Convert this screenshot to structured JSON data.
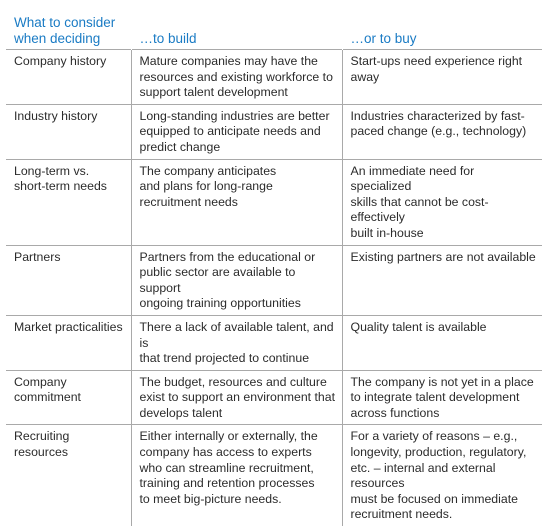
{
  "header": {
    "consider": "What to consider\nwhen deciding",
    "build": "…to build",
    "buy": "…or to buy"
  },
  "rows": [
    {
      "factor": "Company history",
      "build": "Mature companies may have the\nresources and existing workforce to\nsupport talent development",
      "buy": "Start-ups need experience right away"
    },
    {
      "factor": "Industry history",
      "build": "Long-standing industries are better\nequipped to anticipate needs and\npredict change",
      "buy": "Industries characterized by fast-\npaced change (e.g., technology)"
    },
    {
      "factor": "Long-term vs.\nshort-term needs",
      "build": "The company anticipates\nand plans for long-range\nrecruitment needs",
      "buy": "An immediate need for specialized\nskills that cannot be cost-effectively\nbuilt in-house"
    },
    {
      "factor": "Partners",
      "build": "Partners from the educational or\npublic sector are available to support\nongoing training opportunities",
      "buy": "Existing partners are not available"
    },
    {
      "factor": "Market practicalities",
      "build": "There a lack of available talent, and is\nthat trend projected to continue",
      "buy": "Quality talent is available"
    },
    {
      "factor": "Company\ncommitment",
      "build": "The budget, resources and culture\nexist to support an environment that\ndevelops talent",
      "buy": "The company is not yet in a place\nto integrate talent development\nacross functions"
    },
    {
      "factor": "Recruiting resources",
      "build": "Either internally or externally, the\ncompany has access to experts\nwho can streamline recruitment,\ntraining and retention processes\nto meet big-picture needs.",
      "buy": "For a variety of reasons – e.g.,\nlongevity, production, regulatory,\netc. – internal and external resources\nmust be focused on immediate\nrecruitment needs."
    }
  ]
}
